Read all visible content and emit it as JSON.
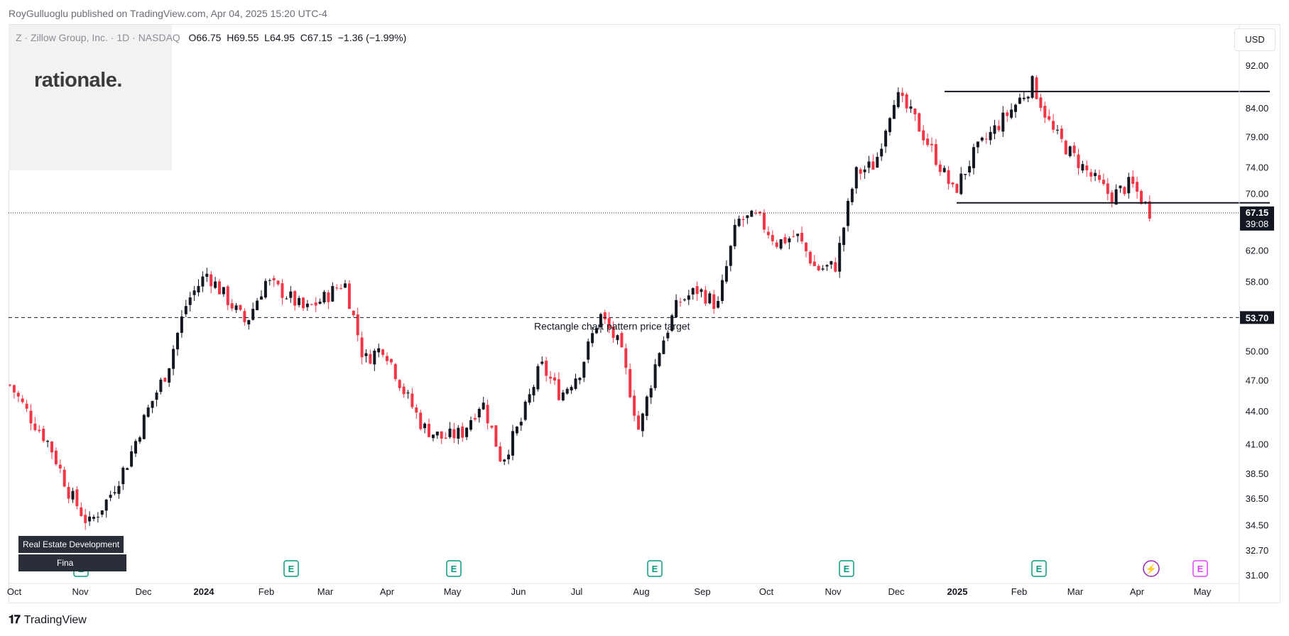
{
  "attribution": "RoyGulluoglu published on TradingView.com, Apr 04, 2025 15:20 UTC-4",
  "legend": {
    "symbol": "Z · Zillow Group, Inc. · 1D · NASDAQ",
    "open_label": "O",
    "open": "66.75",
    "high_label": "H",
    "high": "69.55",
    "low_label": "L",
    "low": "64.95",
    "close_label": "C",
    "close": "67.15",
    "change": "−1.36 (−1.99%)"
  },
  "logo_text": "rationale.",
  "currency_button": "USD",
  "footer_brand": "TradingView",
  "sector_badges": [
    "Real Estate Development",
    "Fina"
  ],
  "colors": {
    "up": "#131722",
    "down": "#f23645",
    "grid": "#e0e3eb",
    "event_green": "#089981",
    "event_purple": "#9c27b0",
    "event_pink": "#e040fb"
  },
  "events": [
    {
      "month": "Nov",
      "icon": "earnings-icon",
      "label": "E"
    },
    {
      "month": "Feb",
      "icon": "earnings-icon",
      "label": "E"
    },
    {
      "month": "May",
      "icon": "earnings-icon",
      "label": "E"
    },
    {
      "month": "Aug",
      "icon": "earnings-icon",
      "label": "E"
    },
    {
      "month": "Nov",
      "icon": "earnings-icon",
      "label": "E"
    },
    {
      "month": "Feb",
      "icon": "earnings-icon",
      "label": "E"
    },
    {
      "month": "Apr",
      "icon": "lightning-icon",
      "label": "⚡"
    },
    {
      "month": "May",
      "icon": "earnings-icon",
      "label": "E"
    }
  ],
  "chart_data": {
    "type": "candlestick",
    "y_axis_ticks": [
      "92.00",
      "84.00",
      "79.00",
      "74.00",
      "70.00",
      "62.00",
      "58.00",
      "50.00",
      "47.00",
      "44.00",
      "41.00",
      "38.50",
      "36.50",
      "34.50",
      "32.70",
      "31.00"
    ],
    "y_scale": "log",
    "x_axis_labels": [
      "Oct",
      "Nov",
      "Dec",
      "2024",
      "Feb",
      "Mar",
      "Apr",
      "May",
      "Jun",
      "Jul",
      "Aug",
      "Sep",
      "Oct",
      "Nov",
      "Dec",
      "2025",
      "Feb",
      "Mar",
      "Apr",
      "May"
    ],
    "last_price_label": "67.15",
    "countdown_label": "39:08",
    "target_price_label": "53.70",
    "target_annotation": "Rectangle chart pattern price target",
    "rectangle_top": 87.0,
    "rectangle_bottom": 68.6,
    "price_path": [
      [
        "Oct",
        46.5
      ],
      [
        "Oct",
        43.5
      ],
      [
        "Nov",
        41.0
      ],
      [
        "Nov",
        37.0
      ],
      [
        "Nov",
        34.5
      ],
      [
        "Nov",
        36.5
      ],
      [
        "Dec",
        39.5
      ],
      [
        "Dec",
        44.0
      ],
      [
        "Dec",
        48.0
      ],
      [
        "2024",
        55.5
      ],
      [
        "2024",
        59.0
      ],
      [
        "2024",
        56.0
      ],
      [
        "Feb",
        53.0
      ],
      [
        "Feb",
        58.0
      ],
      [
        "Feb",
        56.5
      ],
      [
        "Mar",
        54.5
      ],
      [
        "Mar",
        56.0
      ],
      [
        "Mar",
        58.0
      ],
      [
        "Apr",
        49.0
      ],
      [
        "Apr",
        50.5
      ],
      [
        "Apr",
        46.0
      ],
      [
        "May",
        42.5
      ],
      [
        "May",
        41.5
      ],
      [
        "May",
        42.0
      ],
      [
        "Jun",
        45.0
      ],
      [
        "Jun",
        39.5
      ],
      [
        "Jun",
        43.0
      ],
      [
        "Jul",
        48.5
      ],
      [
        "Jul",
        45.5
      ],
      [
        "Jul",
        48.0
      ],
      [
        "Aug",
        54.0
      ],
      [
        "Aug",
        50.5
      ],
      [
        "Aug",
        42.0
      ],
      [
        "Aug",
        50.0
      ],
      [
        "Sep",
        55.5
      ],
      [
        "Sep",
        57.0
      ],
      [
        "Sep",
        55.0
      ],
      [
        "Sep",
        66.0
      ],
      [
        "Oct",
        66.5
      ],
      [
        "Oct",
        63.0
      ],
      [
        "Oct",
        64.0
      ],
      [
        "Nov",
        59.5
      ],
      [
        "Nov",
        60.0
      ],
      [
        "Nov",
        73.0
      ],
      [
        "Nov",
        74.5
      ],
      [
        "Dec",
        86.5
      ],
      [
        "Dec",
        82.0
      ],
      [
        "Dec",
        76.0
      ],
      [
        "2025",
        70.0
      ],
      [
        "2025",
        76.0
      ],
      [
        "2025",
        80.0
      ],
      [
        "Feb",
        84.0
      ],
      [
        "Feb",
        88.5
      ],
      [
        "Feb",
        80.0
      ],
      [
        "Mar",
        76.0
      ],
      [
        "Mar",
        72.5
      ],
      [
        "Mar",
        69.5
      ],
      [
        "Apr",
        71.5
      ],
      [
        "Apr",
        67.15
      ]
    ]
  }
}
